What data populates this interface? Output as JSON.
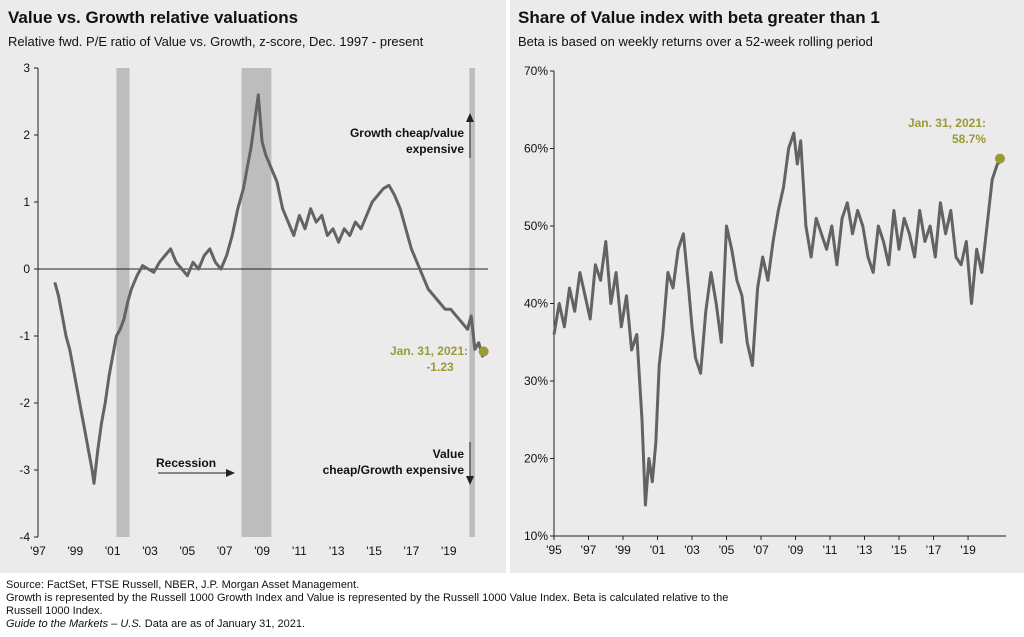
{
  "chart_data": [
    {
      "type": "line",
      "title": "Value vs. Growth relative valuations",
      "subtitle": "Relative fwd. P/E ratio of Value vs. Growth, z-score, Dec. 1997 - present",
      "xlabel": "",
      "ylabel": "",
      "ylim": [
        -4,
        3
      ],
      "xlim": [
        1997,
        2021.1
      ],
      "yticks": [
        3,
        2,
        1,
        0,
        -1,
        -2,
        -3,
        -4
      ],
      "xtick_labels": [
        "'97",
        "'99",
        "'01",
        "'03",
        "'05",
        "'07",
        "'09",
        "'11",
        "'13",
        "'15",
        "'17",
        "'19"
      ],
      "xtick_values": [
        1997,
        1999,
        2001,
        2003,
        2005,
        2007,
        2009,
        2011,
        2013,
        2015,
        2017,
        2019
      ],
      "recessions": [
        [
          2001.2,
          2001.9
        ],
        [
          2007.9,
          2009.5
        ],
        [
          2020.1,
          2020.4
        ]
      ],
      "zero_line": true,
      "grid": false,
      "annotations": {
        "top": "Growth cheap/value expensive",
        "bottom": "Value cheap/Growth expensive",
        "recession": "Recession",
        "point_date": "Jan. 31, 2021:",
        "point_value": "-1.23"
      },
      "highlight": {
        "x": 2021.08,
        "y": -1.23
      },
      "series": [
        {
          "x": [
            1997.9,
            1998.1,
            1998.3,
            1998.5,
            1998.7,
            1998.9,
            1999.1,
            1999.3,
            1999.5,
            1999.7,
            1999.9,
            2000.0,
            2000.2,
            2000.4,
            2000.6,
            2000.8,
            2001.0,
            2001.2,
            2001.4,
            2001.6,
            2001.8,
            2002.0,
            2002.3,
            2002.6,
            2002.9,
            2003.2,
            2003.5,
            2003.8,
            2004.1,
            2004.4,
            2004.7,
            2005.0,
            2005.3,
            2005.6,
            2005.9,
            2006.2,
            2006.5,
            2006.8,
            2007.1,
            2007.4,
            2007.7,
            2008.0,
            2008.2,
            2008.4,
            2008.6,
            2008.8,
            2009.0,
            2009.2,
            2009.5,
            2009.8,
            2010.1,
            2010.4,
            2010.7,
            2011.0,
            2011.3,
            2011.6,
            2011.9,
            2012.2,
            2012.5,
            2012.8,
            2013.1,
            2013.4,
            2013.7,
            2014.0,
            2014.3,
            2014.6,
            2014.9,
            2015.2,
            2015.5,
            2015.8,
            2016.1,
            2016.4,
            2016.7,
            2017.0,
            2017.3,
            2017.6,
            2017.9,
            2018.2,
            2018.5,
            2018.8,
            2019.1,
            2019.4,
            2019.7,
            2020.0,
            2020.2,
            2020.4,
            2020.6,
            2020.8,
            2021.08
          ],
          "y": [
            -0.2,
            -0.4,
            -0.7,
            -1.0,
            -1.2,
            -1.5,
            -1.8,
            -2.1,
            -2.4,
            -2.7,
            -3.0,
            -3.2,
            -2.7,
            -2.3,
            -2.0,
            -1.6,
            -1.3,
            -1.0,
            -0.9,
            -0.75,
            -0.5,
            -0.3,
            -0.1,
            0.05,
            0.0,
            -0.05,
            0.1,
            0.2,
            0.3,
            0.1,
            0.0,
            -0.1,
            0.1,
            0.0,
            0.2,
            0.3,
            0.1,
            0.0,
            0.2,
            0.5,
            0.9,
            1.2,
            1.5,
            1.8,
            2.2,
            2.6,
            1.9,
            1.7,
            1.5,
            1.3,
            0.9,
            0.7,
            0.5,
            0.8,
            0.6,
            0.9,
            0.7,
            0.8,
            0.5,
            0.6,
            0.4,
            0.6,
            0.5,
            0.7,
            0.6,
            0.8,
            1.0,
            1.1,
            1.2,
            1.25,
            1.1,
            0.9,
            0.6,
            0.3,
            0.1,
            -0.1,
            -0.3,
            -0.4,
            -0.5,
            -0.6,
            -0.6,
            -0.7,
            -0.8,
            -0.9,
            -0.7,
            -1.2,
            -1.1,
            -1.3,
            -1.23
          ]
        }
      ]
    },
    {
      "type": "line",
      "title": "Share of Value index with beta greater than 1",
      "subtitle": "Beta is based on weekly returns over a 52-week rolling period",
      "xlabel": "",
      "ylabel": "",
      "ylim": [
        10,
        70
      ],
      "xlim": [
        1995,
        2021.2
      ],
      "ytick_labels": [
        "70%",
        "60%",
        "50%",
        "40%",
        "30%",
        "20%",
        "10%"
      ],
      "ytick_values": [
        70,
        60,
        50,
        40,
        30,
        20,
        10
      ],
      "xtick_labels": [
        "'95",
        "'97",
        "'99",
        "'01",
        "'03",
        "'05",
        "'07",
        "'09",
        "'11",
        "'13",
        "'15",
        "'17",
        "'19"
      ],
      "xtick_values": [
        1995,
        1997,
        1999,
        2001,
        2003,
        2005,
        2007,
        2009,
        2011,
        2013,
        2015,
        2017,
        2019
      ],
      "grid": false,
      "annotations": {
        "point_date": "Jan. 31, 2021:",
        "point_value": "58.7%"
      },
      "highlight": {
        "x": 2021.08,
        "y": 58.7
      },
      "series": [
        {
          "x": [
            1995.0,
            1995.3,
            1995.6,
            1995.9,
            1996.2,
            1996.5,
            1996.8,
            1997.1,
            1997.4,
            1997.7,
            1998.0,
            1998.3,
            1998.6,
            1998.9,
            1999.2,
            1999.5,
            1999.8,
            2000.1,
            2000.3,
            2000.5,
            2000.7,
            2000.9,
            2001.1,
            2001.3,
            2001.6,
            2001.9,
            2002.2,
            2002.5,
            2002.8,
            2003.0,
            2003.2,
            2003.5,
            2003.8,
            2004.1,
            2004.4,
            2004.7,
            2005.0,
            2005.3,
            2005.6,
            2005.9,
            2006.2,
            2006.5,
            2006.8,
            2007.1,
            2007.4,
            2007.7,
            2008.0,
            2008.3,
            2008.6,
            2008.9,
            2009.1,
            2009.3,
            2009.6,
            2009.9,
            2010.2,
            2010.5,
            2010.8,
            2011.1,
            2011.4,
            2011.7,
            2012.0,
            2012.3,
            2012.6,
            2012.9,
            2013.2,
            2013.5,
            2013.8,
            2014.1,
            2014.4,
            2014.7,
            2015.0,
            2015.3,
            2015.6,
            2015.9,
            2016.2,
            2016.5,
            2016.8,
            2017.1,
            2017.4,
            2017.7,
            2018.0,
            2018.3,
            2018.6,
            2018.9,
            2019.2,
            2019.5,
            2019.8,
            2020.1,
            2020.4,
            2020.7,
            2021.08
          ],
          "y": [
            36,
            40,
            37,
            42,
            39,
            44,
            41,
            38,
            45,
            43,
            48,
            40,
            44,
            37,
            41,
            34,
            36,
            25,
            14,
            20,
            17,
            22,
            32,
            36,
            44,
            42,
            47,
            49,
            42,
            37,
            33,
            31,
            39,
            44,
            40,
            35,
            50,
            47,
            43,
            41,
            35,
            32,
            42,
            46,
            43,
            48,
            52,
            55,
            60,
            62,
            58,
            61,
            50,
            46,
            51,
            49,
            47,
            50,
            45,
            51,
            53,
            49,
            52,
            50,
            46,
            44,
            50,
            48,
            45,
            52,
            47,
            51,
            49,
            46,
            52,
            48,
            50,
            46,
            53,
            49,
            52,
            46,
            45,
            48,
            40,
            47,
            44,
            50,
            56,
            58,
            58.7
          ]
        }
      ]
    }
  ],
  "footer": {
    "source": "Source: FactSet, FTSE Russell, NBER, J.P. Morgan Asset Management.",
    "note1": "Growth is represented by the Russell 1000 Growth Index and Value is represented by the Russell 1000 Value Index. Beta is calculated relative to the",
    "note2": "Russell 1000 Index.",
    "guide": "Guide to the Markets – U.S.",
    "asof": " Data are as of January 31, 2021."
  },
  "colors": {
    "line": "#636363",
    "recession": "#bdbdbd",
    "highlight": "#9a9a36",
    "panel": "#ebebeb"
  }
}
